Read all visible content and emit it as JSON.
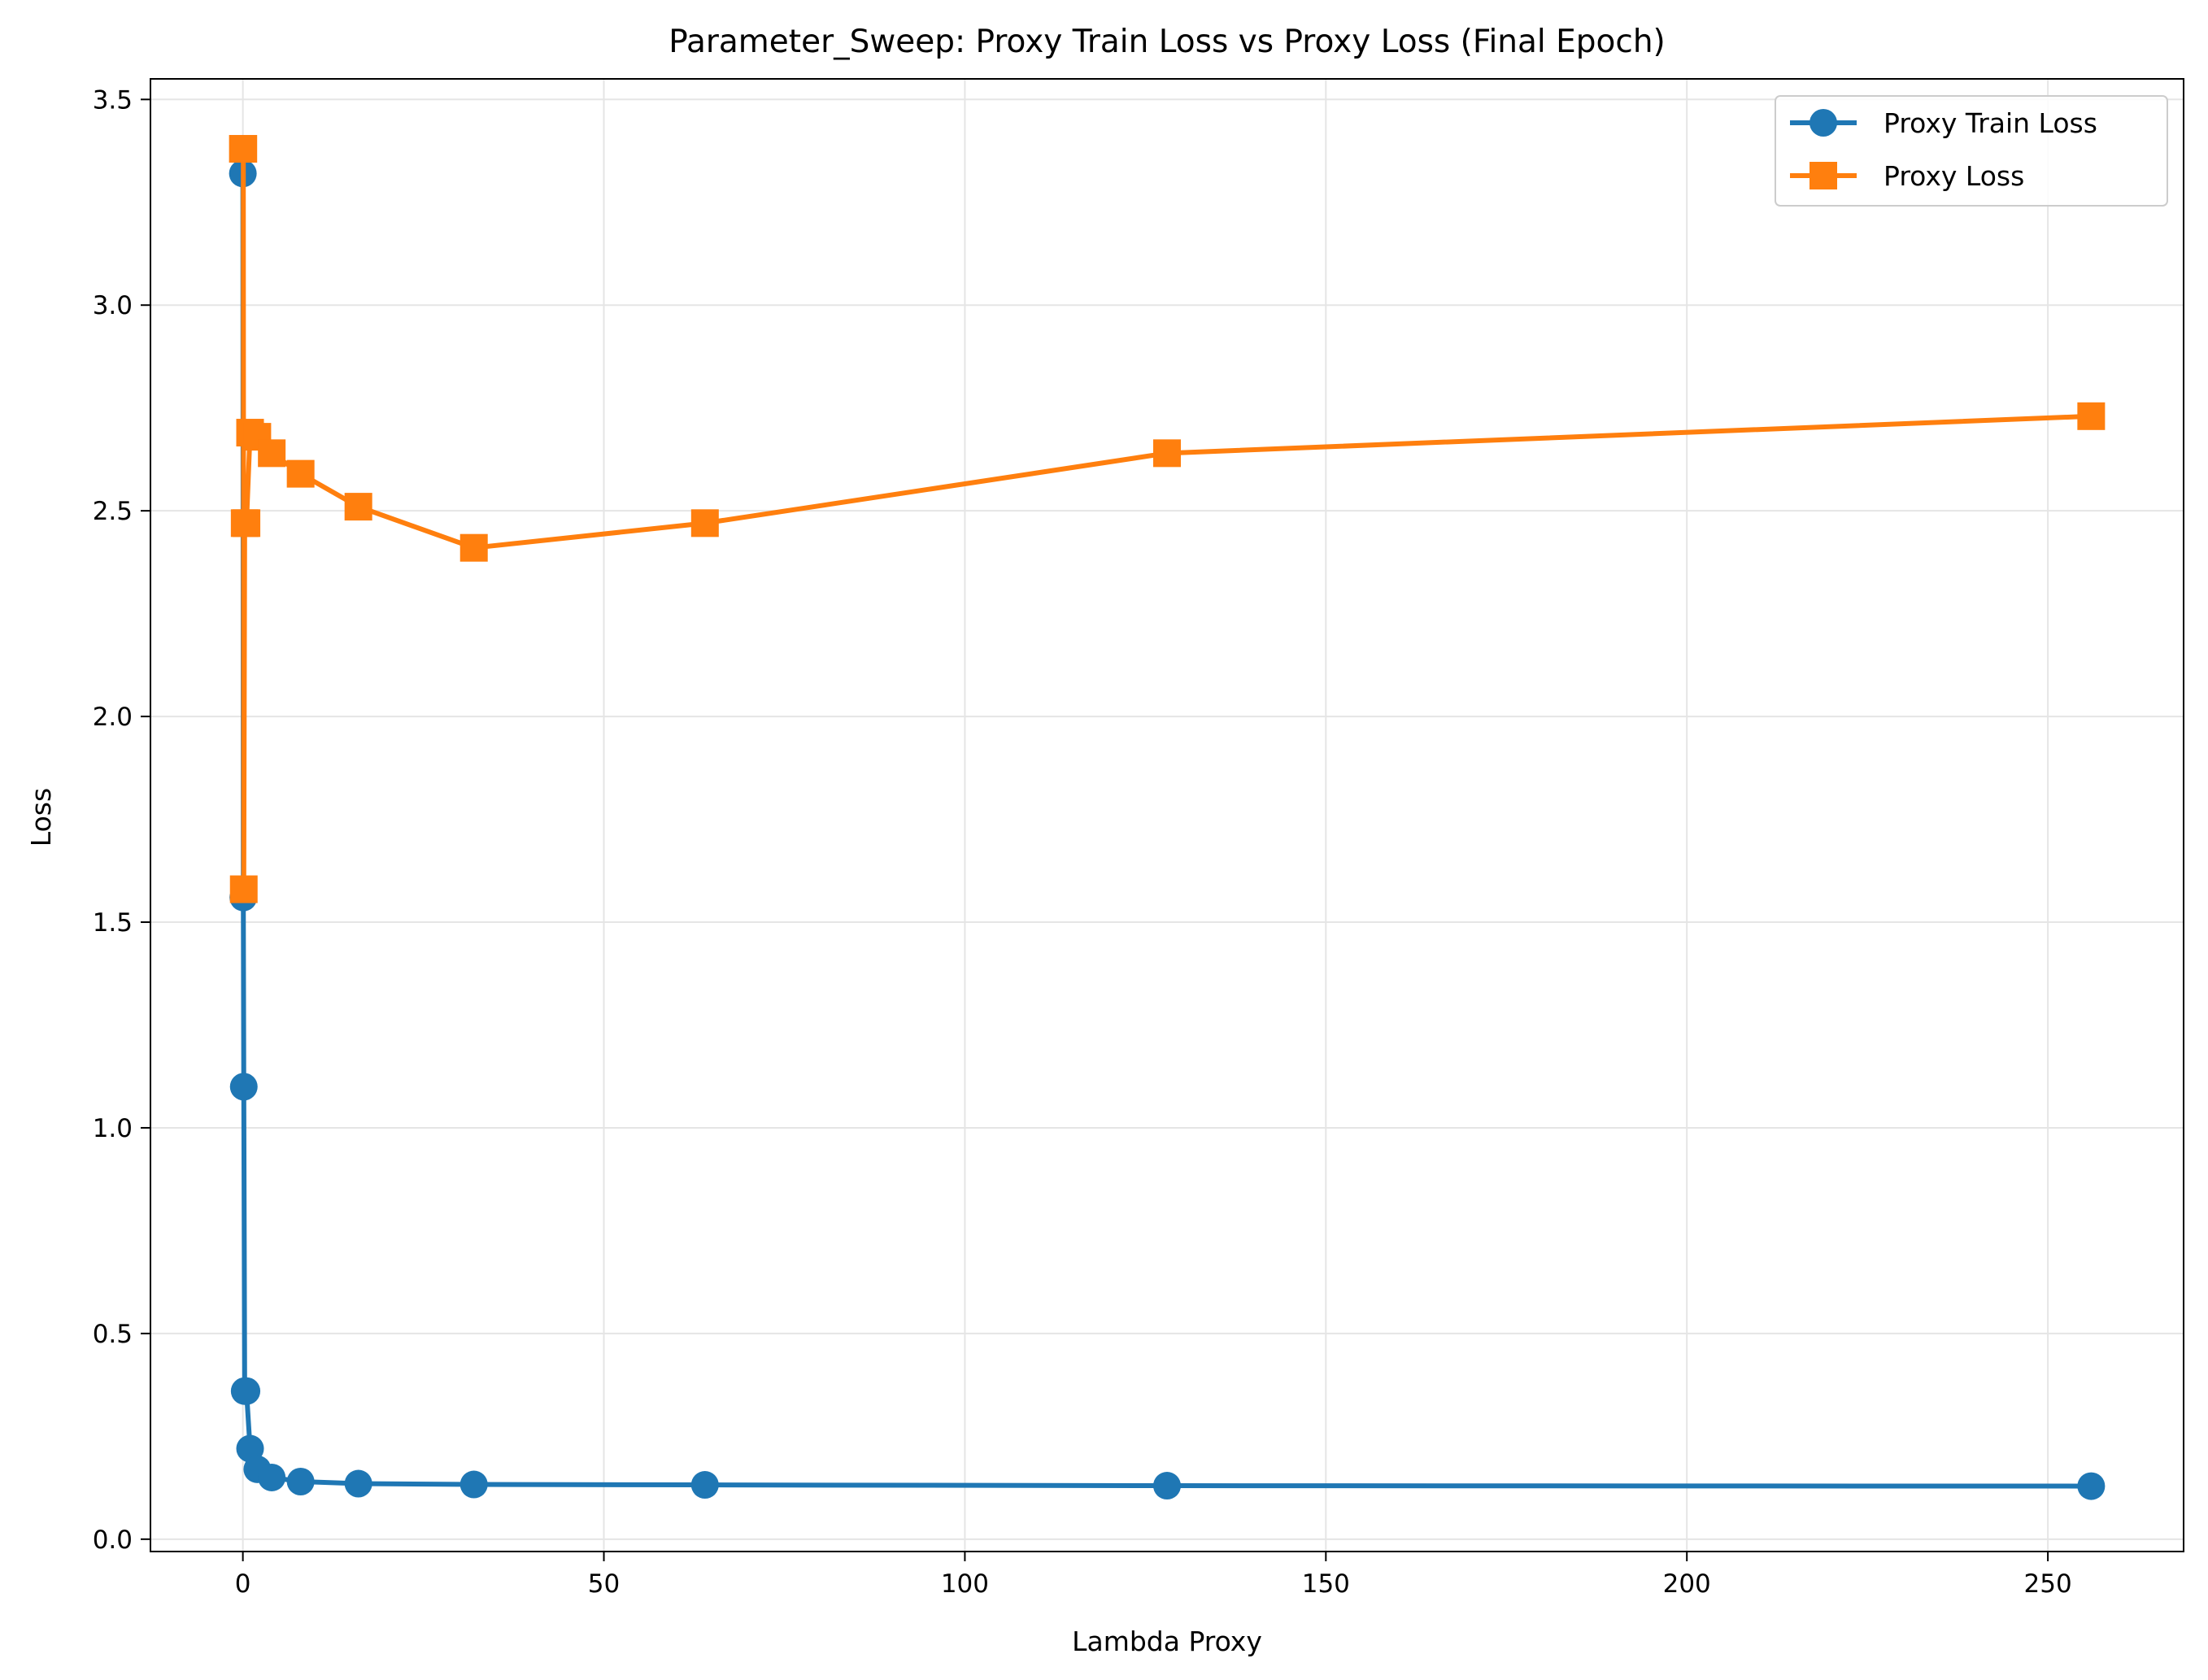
{
  "chart_data": {
    "type": "line",
    "title": "Parameter_Sweep: Proxy Train Loss vs Proxy Loss (Final Epoch)",
    "xlabel": "Lambda Proxy",
    "ylabel": "Loss",
    "xlim": [
      -12.8,
      268.8
    ],
    "ylim": [
      -0.03,
      3.55
    ],
    "xticks": [
      0,
      50,
      100,
      150,
      200,
      250
    ],
    "xtick_labels": [
      "0",
      "50",
      "100",
      "150",
      "200",
      "250"
    ],
    "yticks": [
      0.0,
      0.5,
      1.0,
      1.5,
      2.0,
      2.5,
      3.0,
      3.5
    ],
    "ytick_labels": [
      "0.0",
      "0.5",
      "1.0",
      "1.5",
      "2.0",
      "2.5",
      "3.0",
      "3.5"
    ],
    "grid": true,
    "legend_position": "top-right",
    "x": [
      0,
      0.0625,
      0.125,
      0.25,
      0.5,
      1,
      2,
      4,
      8,
      16,
      32,
      64,
      128,
      256
    ],
    "series": [
      {
        "name": "Proxy Train Loss",
        "color": "#1f77b4",
        "marker": "circle",
        "values": [
          3.32,
          1.56,
          1.1,
          0.36,
          0.36,
          0.22,
          0.17,
          0.15,
          0.14,
          0.135,
          0.133,
          0.132,
          0.13,
          0.129
        ]
      },
      {
        "name": "Proxy Loss",
        "color": "#ff7f0e",
        "marker": "square",
        "values": [
          3.38,
          3.38,
          1.58,
          2.47,
          2.47,
          2.69,
          2.68,
          2.64,
          2.59,
          2.51,
          2.41,
          2.47,
          2.64,
          2.73
        ]
      }
    ]
  }
}
